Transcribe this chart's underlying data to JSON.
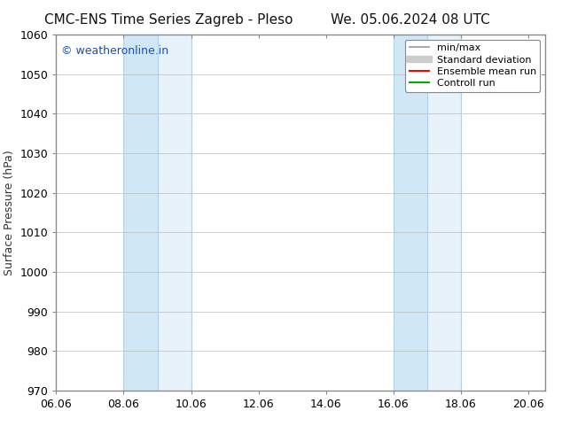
{
  "title_left": "CMC-ENS Time Series Zagreb - Pleso",
  "title_right": "We. 05.06.2024 08 UTC",
  "ylabel": "Surface Pressure (hPa)",
  "ylim": [
    970,
    1060
  ],
  "yticks": [
    970,
    980,
    990,
    1000,
    1010,
    1020,
    1030,
    1040,
    1050,
    1060
  ],
  "xlim": [
    0.0,
    14.5
  ],
  "xtick_labels": [
    "06.06",
    "08.06",
    "10.06",
    "12.06",
    "14.06",
    "16.06",
    "18.06",
    "20.06"
  ],
  "xtick_positions": [
    0.0,
    2.0,
    4.0,
    6.0,
    8.0,
    10.0,
    12.0,
    14.0
  ],
  "watermark": "© weatheronline.in",
  "watermark_color": "#1a4eb5",
  "shaded_bands": [
    {
      "x_start": 2.0,
      "x_mid": 3.0,
      "x_end": 4.0
    },
    {
      "x_start": 10.0,
      "x_mid": 11.0,
      "x_end": 12.0
    }
  ],
  "band_color_light": "#e8f2fa",
  "band_color_dark": "#d0e8f5",
  "band_edge_color": "#b0d0e8",
  "background_color": "#ffffff",
  "grid_color": "#bbbbbb",
  "spine_color": "#888888",
  "legend_items": [
    {
      "label": "min/max",
      "color": "#999999",
      "lw": 1.2,
      "style": "solid"
    },
    {
      "label": "Standard deviation",
      "color": "#cccccc",
      "lw": 6,
      "style": "solid"
    },
    {
      "label": "Ensemble mean run",
      "color": "#ff0000",
      "lw": 1.5,
      "style": "solid"
    },
    {
      "label": "Controll run",
      "color": "#00aa00",
      "lw": 1.5,
      "style": "solid"
    }
  ],
  "title_fontsize": 11,
  "ylabel_fontsize": 9,
  "tick_fontsize": 9,
  "legend_fontsize": 8,
  "watermark_fontsize": 9
}
